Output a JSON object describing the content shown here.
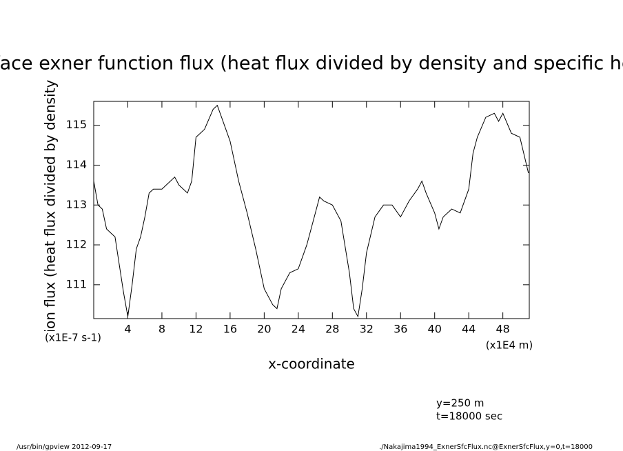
{
  "chart_data": {
    "type": "line",
    "title": "surface exner function flux (heat flux divided by density and specific heat)",
    "y_label": "surface exner function flux (heat flux divided by density and specific heat)",
    "y_unit": "(x1E-7 s-1)",
    "x_label": "x-coordinate",
    "x_unit": "(x1E4 m)",
    "annotations": [
      "y=250 m",
      "t=18000 sec"
    ],
    "footer_left": "/usr/bin/gpview  2012-09-17",
    "footer_right": "./Nakajima1994_ExnerSfcFlux.nc@ExnerSfcFlux,y=0,t=18000",
    "x": [
      0,
      0.5,
      1,
      1.5,
      2,
      2.5,
      3,
      3.5,
      4,
      4.5,
      5,
      5.5,
      6,
      6.5,
      7,
      8,
      9,
      9.5,
      10,
      11,
      11.5,
      12,
      12.5,
      13,
      14,
      14.5,
      15,
      16,
      16.5,
      17,
      18,
      19,
      20,
      21,
      21.5,
      22,
      23,
      24,
      25,
      26,
      26.5,
      27,
      28,
      29,
      30,
      30.5,
      31,
      31.5,
      32,
      33,
      34,
      35,
      36,
      37,
      38,
      38.5,
      39,
      40,
      40.5,
      41,
      42,
      43,
      44,
      44.5,
      45,
      46,
      47,
      47.5,
      48,
      49,
      50,
      51
    ],
    "series": [
      {
        "name": "ExnerSfcFlux",
        "color": "#000000",
        "values": [
          113.6,
          113.0,
          112.9,
          112.4,
          112.3,
          112.2,
          111.5,
          110.8,
          110.2,
          111.0,
          111.9,
          112.2,
          112.7,
          113.3,
          113.4,
          113.4,
          113.6,
          113.7,
          113.5,
          113.3,
          113.6,
          114.7,
          114.8,
          114.9,
          115.4,
          115.5,
          115.2,
          114.6,
          114.1,
          113.6,
          112.8,
          111.9,
          110.9,
          110.5,
          110.4,
          110.9,
          111.3,
          111.4,
          112.0,
          112.8,
          113.2,
          113.1,
          113.0,
          112.6,
          111.3,
          110.4,
          110.2,
          110.9,
          111.8,
          112.7,
          113.0,
          113.0,
          112.7,
          113.1,
          113.4,
          113.6,
          113.3,
          112.8,
          112.4,
          112.7,
          112.9,
          112.8,
          113.4,
          114.3,
          114.7,
          115.2,
          115.3,
          115.1,
          115.3,
          114.8,
          114.7,
          113.8
        ]
      }
    ],
    "xlim": [
      0,
      51.1
    ],
    "ylim": [
      110.15,
      115.6
    ],
    "xticks": [
      4,
      8,
      12,
      16,
      20,
      24,
      28,
      32,
      36,
      40,
      44,
      48
    ],
    "yticks": [
      111,
      112,
      113,
      114,
      115
    ]
  }
}
